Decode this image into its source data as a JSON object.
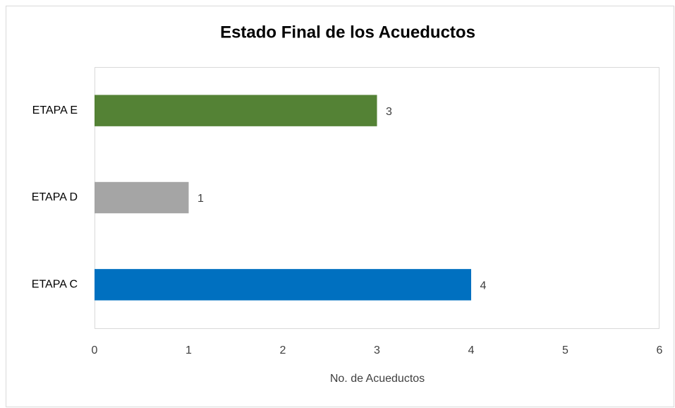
{
  "chart_data": {
    "type": "bar",
    "orientation": "horizontal",
    "title": "Estado Final de los Acueductos",
    "x_label": "No. de Acueductos",
    "categories": [
      "ETAPA C",
      "ETAPA D",
      "ETAPA E"
    ],
    "values": [
      4,
      1,
      3
    ],
    "colors": [
      "#0070c0",
      "#a5a5a5",
      "#548235"
    ],
    "xlim": [
      0,
      6
    ],
    "xticks": [
      0,
      1,
      2,
      3,
      4,
      5,
      6
    ],
    "grid": false
  }
}
